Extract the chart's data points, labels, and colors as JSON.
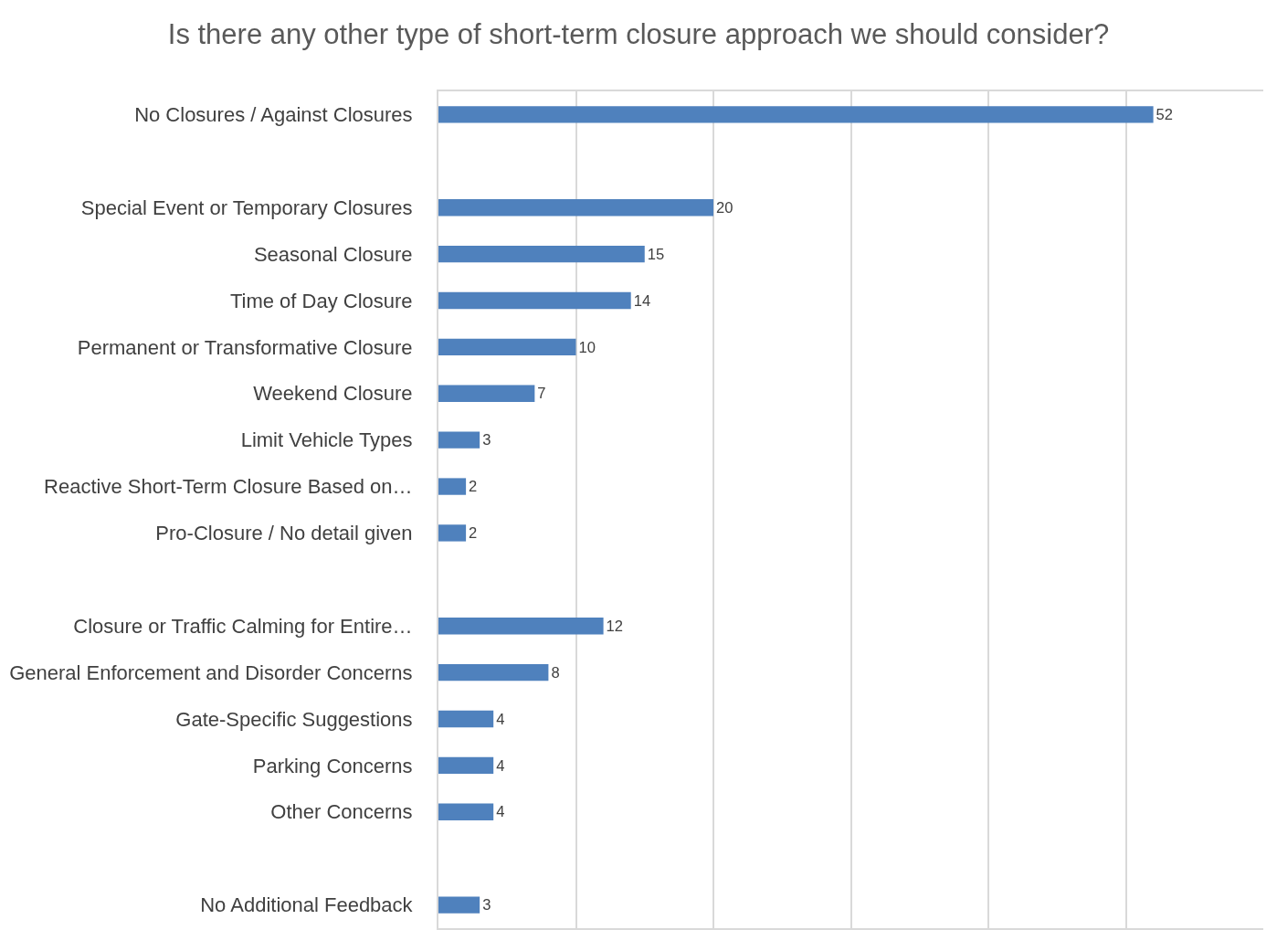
{
  "chart_data": {
    "type": "bar",
    "orientation": "horizontal",
    "title": "Is there any other type of short-term closure approach we should consider?",
    "categories": [
      "No Closures / Against Closures",
      null,
      "Special Event or Temporary Closures",
      "Seasonal Closure",
      "Time of Day Closure",
      "Permanent or Transformative Closure",
      "Weekend Closure",
      "Limit Vehicle Types",
      "Reactive Short-Term Closure Based on…",
      "Pro-Closure / No detail given",
      null,
      "Closure or Traffic Calming for Entire…",
      "General Enforcement and Disorder Concerns",
      "Gate-Specific Suggestions",
      "Parking Concerns",
      "Other Concerns",
      null,
      "No Additional Feedback"
    ],
    "values": [
      52,
      null,
      20,
      15,
      14,
      10,
      7,
      3,
      2,
      2,
      null,
      12,
      8,
      4,
      4,
      4,
      null,
      3
    ],
    "color": "#4f81bd",
    "data_labels": true,
    "xlim": [
      0,
      60
    ],
    "xticks": [
      {
        "value": 0,
        "label": null
      },
      {
        "value": 10,
        "label": null
      },
      {
        "value": 20,
        "label": null
      },
      {
        "value": 30,
        "label": null
      },
      {
        "value": 40,
        "label": null
      },
      {
        "value": 50,
        "label": null
      }
    ],
    "grid": "x",
    "tick_labels": "y"
  }
}
